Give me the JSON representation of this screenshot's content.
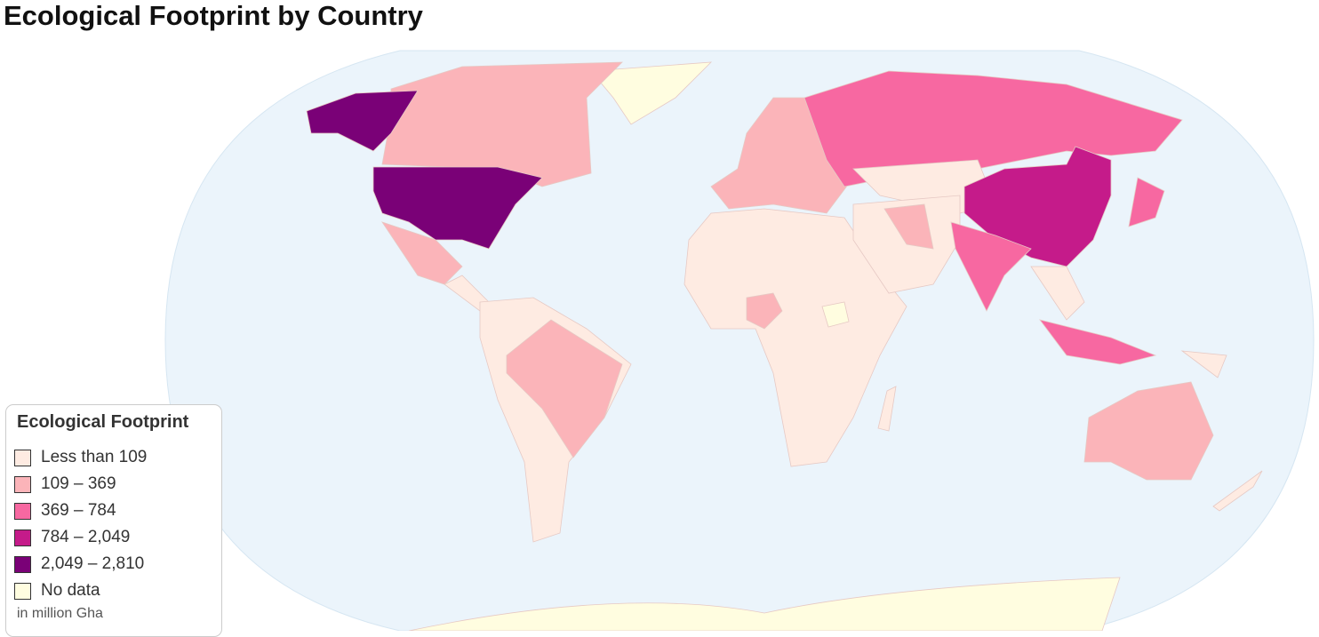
{
  "title": "Ecological Footprint by Country",
  "legend": {
    "title": "Ecological Footprint",
    "items": [
      {
        "label": "Less than 109",
        "color": "#feebe2"
      },
      {
        "label": "109 – 369",
        "color": "#fbb4b9"
      },
      {
        "label": "369 – 784",
        "color": "#f768a1"
      },
      {
        "label": "784 – 2,049",
        "color": "#c51b8a"
      },
      {
        "label": "2,049 – 2,810",
        "color": "#7a0177"
      },
      {
        "label": "No data",
        "color": "#fffde0"
      }
    ],
    "note": "in million Gha"
  }
}
